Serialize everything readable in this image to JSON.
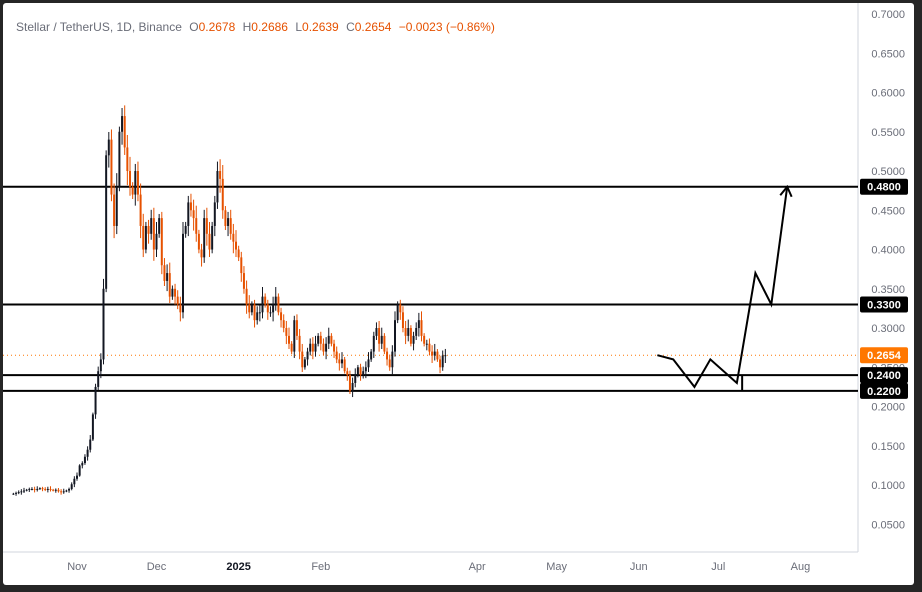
{
  "header": {
    "symbol": "Stellar / TetherUS, 1D, Binance",
    "o_label": "O",
    "o_value": "0.2678",
    "h_label": "H",
    "h_value": "0.2686",
    "l_label": "L",
    "l_value": "0.2639",
    "c_label": "C",
    "c_value": "0.2654",
    "change": "−0.0023 (−0.86%)"
  },
  "colors": {
    "up": "#131722",
    "down": "#e65100",
    "line": "#000000",
    "last_price": "#ff7700"
  },
  "chart_data": {
    "type": "candlestick",
    "symbol": "Stellar / TetherUS",
    "interval": "1D",
    "exchange": "Binance",
    "ylim": [
      0.03,
      0.7
    ],
    "y_ticks": [
      "0.7000",
      "0.6500",
      "0.6000",
      "0.5500",
      "0.5000",
      "0.4500",
      "0.4000",
      "0.3500",
      "0.3000",
      "0.2500",
      "0.2000",
      "0.1500",
      "0.1000",
      "0.0500"
    ],
    "x_ticks": [
      {
        "label": "Nov",
        "bold": false,
        "date": "2024-11-01"
      },
      {
        "label": "Dec",
        "bold": false,
        "date": "2024-12-01"
      },
      {
        "label": "2025",
        "bold": true,
        "date": "2025-01-01"
      },
      {
        "label": "Feb",
        "bold": false,
        "date": "2025-02-01"
      },
      {
        "label": "Apr",
        "bold": false,
        "date": "2025-04-01"
      },
      {
        "label": "May",
        "bold": false,
        "date": "2025-05-01"
      },
      {
        "label": "Jun",
        "bold": false,
        "date": "2025-06-01"
      },
      {
        "label": "Jul",
        "bold": false,
        "date": "2025-07-01"
      },
      {
        "label": "Aug",
        "bold": false,
        "date": "2025-08-01"
      }
    ],
    "start_date": "2024-10-08",
    "closes": [
      0.089,
      0.09,
      0.091,
      0.092,
      0.093,
      0.094,
      0.095,
      0.095,
      0.094,
      0.095,
      0.096,
      0.095,
      0.094,
      0.095,
      0.094,
      0.093,
      0.094,
      0.092,
      0.091,
      0.092,
      0.093,
      0.095,
      0.101,
      0.108,
      0.112,
      0.125,
      0.128,
      0.136,
      0.145,
      0.158,
      0.19,
      0.225,
      0.245,
      0.26,
      0.35,
      0.52,
      0.54,
      0.47,
      0.43,
      0.48,
      0.55,
      0.57,
      0.53,
      0.5,
      0.48,
      0.47,
      0.5,
      0.47,
      0.43,
      0.4,
      0.43,
      0.42,
      0.44,
      0.4,
      0.42,
      0.44,
      0.38,
      0.36,
      0.37,
      0.34,
      0.35,
      0.34,
      0.33,
      0.32,
      0.42,
      0.43,
      0.46,
      0.45,
      0.44,
      0.42,
      0.4,
      0.39,
      0.44,
      0.42,
      0.4,
      0.43,
      0.46,
      0.5,
      0.49,
      0.45,
      0.43,
      0.44,
      0.42,
      0.41,
      0.4,
      0.39,
      0.37,
      0.35,
      0.33,
      0.32,
      0.33,
      0.31,
      0.32,
      0.32,
      0.34,
      0.33,
      0.32,
      0.32,
      0.33,
      0.34,
      0.32,
      0.31,
      0.3,
      0.29,
      0.28,
      0.27,
      0.31,
      0.29,
      0.27,
      0.25,
      0.26,
      0.27,
      0.28,
      0.27,
      0.28,
      0.29,
      0.28,
      0.27,
      0.28,
      0.29,
      0.28,
      0.27,
      0.26,
      0.255,
      0.26,
      0.245,
      0.24,
      0.22,
      0.23,
      0.24,
      0.25,
      0.24,
      0.245,
      0.25,
      0.26,
      0.27,
      0.29,
      0.3,
      0.28,
      0.29,
      0.27,
      0.26,
      0.25,
      0.27,
      0.31,
      0.33,
      0.32,
      0.3,
      0.29,
      0.3,
      0.28,
      0.29,
      0.3,
      0.31,
      0.29,
      0.28,
      0.28,
      0.27,
      0.265,
      0.27,
      0.26,
      0.25,
      0.265,
      0.2654
    ],
    "horizontal_levels": [
      0.48,
      0.33,
      0.24,
      0.22
    ],
    "last_price": 0.2654,
    "level_labels": [
      "0.4800",
      "0.3300",
      "0.2400",
      "0.2200"
    ],
    "last_price_label": "0.2654",
    "projection": {
      "start_date": "2025-06-08",
      "points": [
        0.2654,
        0.26,
        0.225,
        0.26,
        0.23,
        0.37,
        0.33,
        0.48
      ],
      "dates": [
        "2025-06-08",
        "2025-06-14",
        "2025-06-22",
        "2025-06-28",
        "2025-07-08",
        "2025-07-15",
        "2025-07-21",
        "2025-07-27"
      ]
    }
  }
}
